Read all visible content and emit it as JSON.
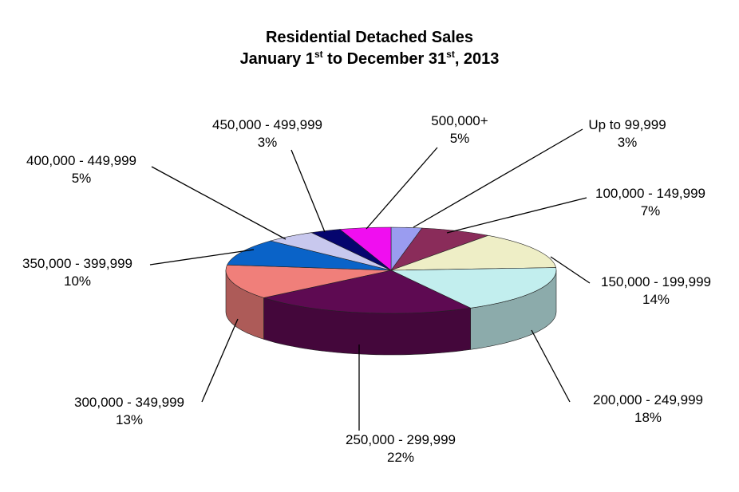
{
  "chart_data": {
    "type": "pie",
    "title_line1": "Residential Detached Sales",
    "title_line2": {
      "a": "January 1",
      "sup1": "st",
      "b": " to December 31",
      "sup2": "st",
      "c": ", 2013"
    },
    "slices": [
      {
        "label": "Up to 99,999",
        "value": 3,
        "value_label": "3%",
        "color": "#9a9cf0"
      },
      {
        "label": "100,000 - 149,999",
        "value": 7,
        "value_label": "7%",
        "color": "#8a2c5a"
      },
      {
        "label": "150,000 - 199,999",
        "value": 14,
        "value_label": "14%",
        "color": "#eeeec6"
      },
      {
        "label": "200,000 - 249,999",
        "value": 18,
        "value_label": "18%",
        "color": "#c2eeee"
      },
      {
        "label": "250,000 - 299,999",
        "value": 22,
        "value_label": "22%",
        "color": "#5e0a52"
      },
      {
        "label": "300,000 - 349,999",
        "value": 13,
        "value_label": "13%",
        "color": "#f07f7a"
      },
      {
        "label": "350,000 - 399,999",
        "value": 10,
        "value_label": "10%",
        "color": "#0a63c8"
      },
      {
        "label": "400,000 - 449,999",
        "value": 5,
        "value_label": "5%",
        "color": "#c8c8ee"
      },
      {
        "label": "450,000 - 499,999",
        "value": 3,
        "value_label": "3%",
        "color": "#05056e"
      },
      {
        "label": "500,000+",
        "value": 5,
        "value_label": "5%",
        "color": "#f00ef0"
      }
    ],
    "legend": "none (leader-line labels)"
  }
}
